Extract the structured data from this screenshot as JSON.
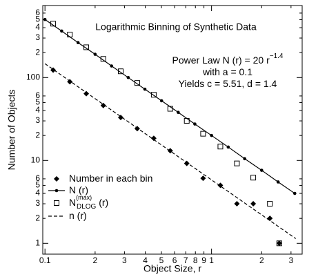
{
  "chart_data": {
    "type": "scatter",
    "title": "Logarithmic Binning of Synthetic Data",
    "x_label": "Object Size,  r",
    "y_label": "Number of Objects",
    "annotations": [
      {
        "text": "Power Law    N (r) = 20   r",
        "sup": "−1.4"
      },
      {
        "text": "with  a = 0.1"
      },
      {
        "text": "Yields  c = 5.51,   d = 1.4"
      }
    ],
    "log_x": true,
    "log_y": true,
    "xlim": [
      0.097,
      3.5
    ],
    "ylim": [
      0.74,
      740
    ],
    "xticks": [
      0.1,
      {
        "value": 0.2,
        "label": "2"
      },
      {
        "value": 0.3,
        "label": "3"
      },
      {
        "value": 0.4,
        "label": "4"
      },
      {
        "value": 0.5,
        "label": "5"
      },
      {
        "value": 0.6,
        "label": "6"
      },
      {
        "value": 0.7,
        "label": "7"
      },
      {
        "value": 0.8,
        "label": "8"
      },
      {
        "value": 0.9,
        "label": "9"
      },
      1,
      2,
      3
    ],
    "yticks": [
      1,
      2,
      3,
      4,
      5,
      6,
      10,
      {
        "value": 20,
        "label": "2"
      },
      {
        "value": 30,
        "label": "3"
      },
      {
        "value": 40,
        "label": "4"
      },
      {
        "value": 50,
        "label": "5"
      },
      {
        "value": 60,
        "label": "6"
      },
      100,
      {
        "value": 200,
        "label": "2"
      },
      {
        "value": 300,
        "label": "3"
      },
      {
        "value": 400,
        "label": "4"
      },
      {
        "value": 500,
        "label": "5"
      },
      {
        "value": 600,
        "label": "6"
      }
    ],
    "series": [
      {
        "name": [
          "Number in each bin"
        ],
        "marker": "diamond",
        "line": "none",
        "color": "#000",
        "x": [
          0.112,
          0.141,
          0.177,
          0.224,
          0.285,
          0.358,
          0.45,
          0.565,
          0.71,
          0.89,
          1.13,
          1.42,
          1.78,
          2.24,
          2.55
        ],
        "values": [
          123,
          89,
          64,
          46,
          33,
          24.2,
          18.5,
          13.1,
          9.2,
          6.1,
          5.0,
          3.0,
          3.0,
          2.0,
          1.0
        ]
      },
      {
        "name": [
          "N",
          "",
          "",
          " (r)"
        ],
        "marker": "circle",
        "line": "solid",
        "color": "#000",
        "x": [
          0.1,
          0.126,
          0.158,
          0.2,
          0.251,
          0.316,
          0.398,
          0.501,
          0.631,
          0.794,
          1,
          1.26,
          1.58,
          2,
          2.51,
          3.16
        ],
        "values": [
          502,
          364,
          264,
          191,
          138,
          100,
          72.4,
          52.5,
          38.0,
          27.5,
          20,
          14.5,
          10.5,
          7.6,
          5.5,
          4.0
        ]
      },
      {
        "name": [
          "N",
          "(max)",
          "DLOG",
          " (r)"
        ],
        "marker": "square",
        "line": "none",
        "color": "#000",
        "x": [
          0.112,
          0.141,
          0.177,
          0.224,
          0.285,
          0.358,
          0.45,
          0.565,
          0.71,
          0.89,
          1.13,
          1.42,
          1.78,
          2.24,
          2.55
        ],
        "values": [
          447,
          330,
          232,
          168,
          119,
          86,
          62,
          42,
          30,
          21,
          14.7,
          9.2,
          6.2,
          3.0,
          1.0
        ]
      },
      {
        "name": [
          "n",
          "",
          "",
          " (r)"
        ],
        "marker": "none",
        "line": "dashed",
        "color": "#000",
        "x": [
          0.1,
          3.2
        ],
        "values": [
          147,
          1.14
        ]
      }
    ]
  }
}
